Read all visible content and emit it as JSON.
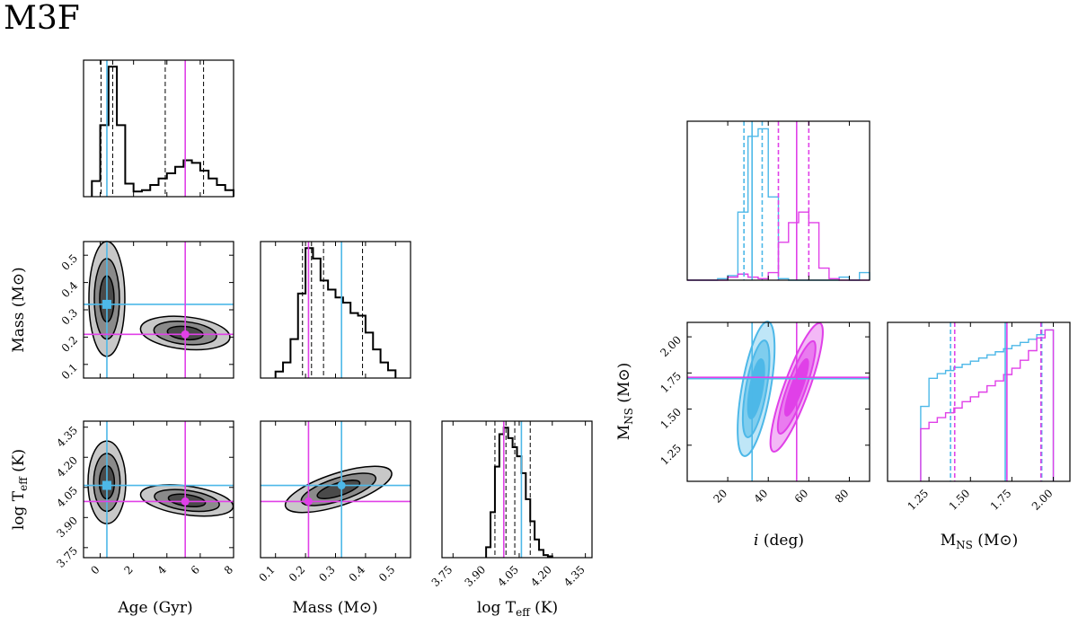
{
  "title": "M3F",
  "colors": {
    "cyan": "#4db8e8",
    "magenta": "#e040e8",
    "black": "#000000"
  },
  "chart_data": {
    "type": "corner",
    "left_corner": {
      "parameters": [
        {
          "key": "age",
          "label": "Age (Gyr)",
          "range": [
            -1,
            8
          ],
          "ticks": [
            0,
            2,
            4,
            6,
            8
          ],
          "tick_labels": [
            "0",
            "2",
            "4",
            "6",
            "8"
          ]
        },
        {
          "key": "mass",
          "label": "Mass (M⊙)",
          "range": [
            0.05,
            0.55
          ],
          "ticks": [
            0.1,
            0.2,
            0.3,
            0.4,
            0.5
          ],
          "tick_labels": [
            "0.1",
            "0.2",
            "0.3",
            "0.4",
            "0.5"
          ]
        },
        {
          "key": "logt",
          "label": "log Tₑₒₒ (K)",
          "label_main": "log T",
          "label_sub": "eff",
          "label_unit": " (K)",
          "range": [
            3.7,
            4.38
          ],
          "ticks": [
            3.75,
            3.9,
            4.05,
            4.2,
            4.35
          ],
          "tick_labels": [
            "3.75",
            "3.90",
            "4.05",
            "4.20",
            "4.35"
          ]
        }
      ],
      "truths_cyan": {
        "age": 0.4,
        "mass": 0.32,
        "logt": 4.06
      },
      "truths_magenta": {
        "age": 5.1,
        "mass": 0.21,
        "logt": 3.98
      },
      "hist_age": {
        "bins": [
          -0.5,
          0,
          0.5,
          1,
          1.5,
          2,
          2.5,
          3,
          3.5,
          4,
          4.5,
          5,
          5.5,
          6,
          6.5,
          7,
          7.5,
          8
        ],
        "counts": [
          0.12,
          0.55,
          1.0,
          0.55,
          0.1,
          0.04,
          0.05,
          0.09,
          0.14,
          0.18,
          0.23,
          0.28,
          0.26,
          0.2,
          0.14,
          0.09,
          0.05
        ]
      },
      "hist_age_quantiles": [
        0.05,
        0.75,
        3.9,
        6.2
      ],
      "hist_mass": {
        "bins": [
          0.1,
          0.125,
          0.15,
          0.175,
          0.2,
          0.225,
          0.25,
          0.275,
          0.3,
          0.325,
          0.35,
          0.375,
          0.4,
          0.425,
          0.45,
          0.475,
          0.5
        ],
        "counts": [
          0.05,
          0.12,
          0.3,
          0.65,
          1.0,
          0.92,
          0.75,
          0.68,
          0.62,
          0.58,
          0.5,
          0.48,
          0.35,
          0.22,
          0.12,
          0.06
        ]
      },
      "hist_mass_quantiles": [
        0.19,
        0.22,
        0.26,
        0.39
      ],
      "hist_logt": {
        "bins": [
          3.9,
          3.92,
          3.94,
          3.96,
          3.98,
          4.0,
          4.02,
          4.04,
          4.06,
          4.08,
          4.1,
          4.12,
          4.14,
          4.16,
          4.18,
          4.2
        ],
        "counts": [
          0.08,
          0.35,
          0.7,
          0.95,
          1.0,
          0.92,
          0.85,
          0.78,
          0.65,
          0.45,
          0.28,
          0.14,
          0.06,
          0.02,
          0.01
        ]
      },
      "hist_logt_quantiles": [
        3.94,
        3.99,
        4.03,
        4.1
      ]
    },
    "right_corner": {
      "parameters": [
        {
          "key": "inc",
          "label_main": "i",
          "label_unit": " (deg)",
          "range": [
            0,
            90
          ],
          "ticks": [
            20,
            40,
            60,
            80
          ],
          "tick_labels": [
            "20",
            "40",
            "60",
            "80"
          ]
        },
        {
          "key": "mns",
          "label_main": "M",
          "label_sub": "NS",
          "label_unit": " (M⊙)",
          "range": [
            1.0,
            2.1
          ],
          "ticks": [
            1.25,
            1.5,
            1.75,
            2.0
          ],
          "tick_labels": [
            "1.25",
            "1.50",
            "1.75",
            "2.00"
          ]
        }
      ],
      "truths_cyan": {
        "inc": 32,
        "mns": 1.71
      },
      "truths_magenta": {
        "inc": 54,
        "mns": 1.72
      },
      "hist_inc_cyan": {
        "bins": [
          0,
          5,
          10,
          15,
          20,
          25,
          30,
          35,
          40,
          45,
          50,
          55,
          60,
          65,
          70,
          75,
          80,
          85,
          90
        ],
        "counts": [
          0,
          0,
          0,
          0.01,
          0.03,
          0.45,
          0.95,
          1.0,
          0.55,
          0.01,
          0,
          0,
          0,
          0,
          0,
          0.02,
          0,
          0.05
        ]
      },
      "hist_inc_magenta": {
        "bins": [
          0,
          5,
          10,
          15,
          20,
          25,
          30,
          35,
          40,
          45,
          50,
          55,
          60,
          65,
          70,
          75,
          80,
          85,
          90
        ],
        "counts": [
          0,
          0,
          0,
          0,
          0.02,
          0.04,
          0.02,
          0.01,
          0.05,
          0.25,
          0.38,
          0.45,
          0.38,
          0.08,
          0.01,
          0,
          0,
          0
        ]
      },
      "inc_quantiles_cyan": [
        28,
        37
      ],
      "inc_quantiles_magenta": [
        45,
        60
      ],
      "hist_mns_cyan": {
        "bins": [
          1.2,
          1.25,
          1.3,
          1.35,
          1.4,
          1.45,
          1.5,
          1.55,
          1.6,
          1.65,
          1.7,
          1.75,
          1.8,
          1.85,
          1.9,
          1.95,
          2.0
        ],
        "counts": [
          0.48,
          0.66,
          0.69,
          0.71,
          0.73,
          0.75,
          0.77,
          0.79,
          0.81,
          0.83,
          0.85,
          0.87,
          0.89,
          0.91,
          0.94,
          0.97
        ]
      },
      "hist_mns_magenta": {
        "bins": [
          1.2,
          1.25,
          1.3,
          1.35,
          1.4,
          1.45,
          1.5,
          1.55,
          1.6,
          1.65,
          1.7,
          1.75,
          1.8,
          1.85,
          1.9,
          1.95,
          2.0
        ],
        "counts": [
          0.33,
          0.37,
          0.4,
          0.43,
          0.46,
          0.5,
          0.53,
          0.56,
          0.6,
          0.63,
          0.67,
          0.71,
          0.76,
          0.82,
          0.9,
          0.95
        ]
      },
      "mns_quantiles_cyan": [
        1.38,
        1.93
      ],
      "mns_quantiles_magenta": [
        1.4,
        1.92
      ]
    }
  }
}
